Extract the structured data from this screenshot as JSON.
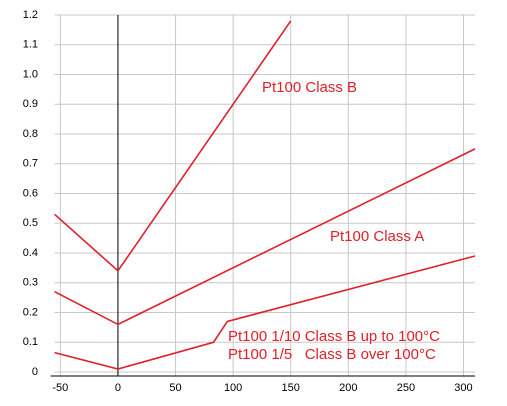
{
  "chart_data": {
    "type": "line",
    "xlim": [
      -55,
      310
    ],
    "xticks": [
      -50,
      0,
      50,
      100,
      150,
      200,
      250,
      300
    ],
    "ylim": [
      0,
      1.2
    ],
    "yticks": [
      0,
      0.1,
      0.2,
      0.3,
      0.4,
      0.5,
      0.6,
      0.7,
      0.8,
      0.9,
      {
        "value": 1,
        "label": "1.0"
      },
      1.1,
      1.2
    ],
    "grid": true,
    "series": [
      {
        "color": "#e0202a",
        "x": [
          -55,
          0,
          150
        ],
        "values": [
          0.53,
          0.34,
          1.18
        ]
      },
      {
        "color": "#e0202a",
        "x": [
          -55,
          0,
          310
        ],
        "values": [
          0.27,
          0.16,
          0.75
        ]
      },
      {
        "color": "#e0202a",
        "x": [
          -55,
          0,
          83,
          95,
          310
        ],
        "values": [
          0.065,
          0.01,
          0.1,
          0.17,
          0.39
        ]
      }
    ],
    "annotations": [
      "Pt100 Class B",
      "Pt100 Class A",
      "Pt100 1/10 Class B up to 100°C",
      "Pt100 1/5   Class B over 100°C"
    ]
  }
}
